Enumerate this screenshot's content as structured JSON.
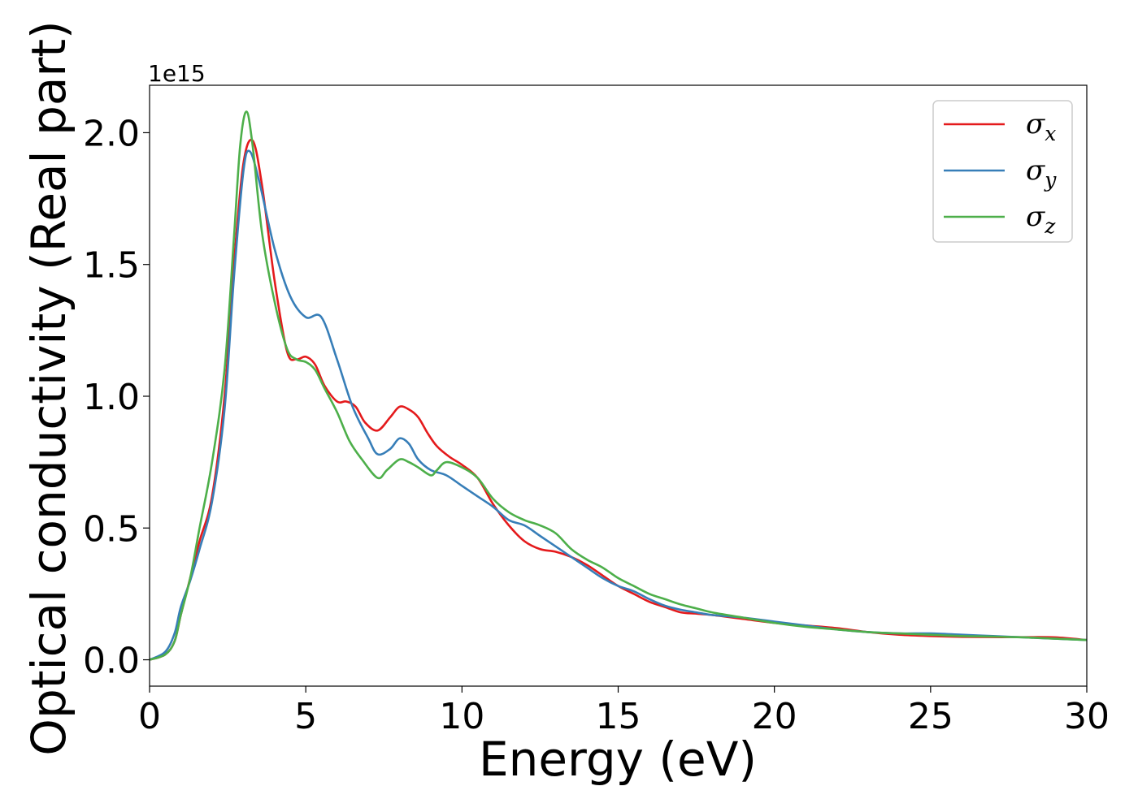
{
  "chart_data": {
    "type": "line",
    "xlabel": "Energy (eV)",
    "ylabel": "Optical conductivity (Real part)",
    "y_offset_text": "1e15",
    "xlim": [
      0,
      30
    ],
    "ylim": [
      -0.1,
      2.18
    ],
    "xticks": [
      0,
      5,
      10,
      15,
      20,
      25,
      30
    ],
    "xtick_labels": [
      "0",
      "5",
      "10",
      "15",
      "20",
      "25",
      "30"
    ],
    "yticks": [
      0.0,
      0.5,
      1.0,
      1.5,
      2.0
    ],
    "ytick_labels": [
      "0.0",
      "0.5",
      "1.0",
      "1.5",
      "2.0"
    ],
    "grid": false,
    "legend_position": "top-right",
    "series": [
      {
        "name": "σx",
        "legend_base": "σ",
        "legend_sub": "x",
        "color": "#e41a1c",
        "x": [
          0,
          0.5,
          0.8,
          1.0,
          1.3,
          1.6,
          2.0,
          2.4,
          2.7,
          3.0,
          3.3,
          3.6,
          4.0,
          4.4,
          4.7,
          5.0,
          5.3,
          5.6,
          6.0,
          6.3,
          6.6,
          6.9,
          7.3,
          7.7,
          8.0,
          8.3,
          8.6,
          8.9,
          9.2,
          9.6,
          10.0,
          10.5,
          11.0,
          11.5,
          12.0,
          12.5,
          13.0,
          13.5,
          14.0,
          14.5,
          15.0,
          15.5,
          16.0,
          16.5,
          17.0,
          17.5,
          18.0,
          19.0,
          20.0,
          21.0,
          22.0,
          23.0,
          24.0,
          25.0,
          26.0,
          27.0,
          28.0,
          29.0,
          30.0
        ],
        "values": [
          0.0,
          0.02,
          0.07,
          0.17,
          0.31,
          0.45,
          0.62,
          1.0,
          1.5,
          1.88,
          1.97,
          1.8,
          1.44,
          1.17,
          1.14,
          1.15,
          1.12,
          1.04,
          0.98,
          0.98,
          0.96,
          0.9,
          0.87,
          0.92,
          0.96,
          0.95,
          0.92,
          0.86,
          0.81,
          0.77,
          0.74,
          0.69,
          0.59,
          0.51,
          0.45,
          0.42,
          0.41,
          0.39,
          0.36,
          0.32,
          0.28,
          0.25,
          0.22,
          0.2,
          0.18,
          0.175,
          0.17,
          0.155,
          0.14,
          0.13,
          0.12,
          0.105,
          0.095,
          0.09,
          0.087,
          0.086,
          0.086,
          0.085,
          0.075
        ]
      },
      {
        "name": "σy",
        "legend_base": "σ",
        "legend_sub": "y",
        "color": "#377eb8",
        "x": [
          0,
          0.5,
          0.8,
          1.0,
          1.3,
          1.6,
          2.0,
          2.4,
          2.7,
          3.0,
          3.2,
          3.5,
          4.0,
          4.5,
          5.0,
          5.5,
          6.0,
          6.5,
          7.0,
          7.3,
          7.7,
          8.0,
          8.3,
          8.6,
          9.0,
          9.5,
          10.0,
          10.5,
          11.0,
          11.5,
          12.0,
          12.5,
          13.0,
          13.5,
          14.0,
          14.5,
          15.0,
          15.5,
          16.0,
          16.5,
          17.0,
          17.5,
          18.0,
          19.0,
          20.0,
          21.0,
          22.0,
          23.0,
          24.0,
          25.0,
          26.0,
          27.0,
          28.0,
          29.0,
          30.0
        ],
        "values": [
          0.0,
          0.03,
          0.1,
          0.2,
          0.3,
          0.42,
          0.6,
          0.95,
          1.45,
          1.85,
          1.93,
          1.82,
          1.56,
          1.38,
          1.3,
          1.3,
          1.14,
          0.96,
          0.84,
          0.78,
          0.8,
          0.84,
          0.82,
          0.76,
          0.72,
          0.7,
          0.66,
          0.62,
          0.58,
          0.53,
          0.51,
          0.47,
          0.43,
          0.39,
          0.35,
          0.31,
          0.28,
          0.26,
          0.23,
          0.205,
          0.19,
          0.18,
          0.17,
          0.16,
          0.145,
          0.13,
          0.115,
          0.105,
          0.1,
          0.1,
          0.095,
          0.09,
          0.085,
          0.08,
          0.075
        ]
      },
      {
        "name": "σz",
        "legend_base": "σ",
        "legend_sub": "z",
        "color": "#4daf4a",
        "x": [
          0,
          0.5,
          0.8,
          1.0,
          1.3,
          1.6,
          2.0,
          2.4,
          2.7,
          2.9,
          3.1,
          3.3,
          3.6,
          4.0,
          4.4,
          4.7,
          5.0,
          5.3,
          5.6,
          6.0,
          6.4,
          6.8,
          7.3,
          7.6,
          8.0,
          8.3,
          8.6,
          9.0,
          9.2,
          9.5,
          10.0,
          10.5,
          11.0,
          11.5,
          12.0,
          12.5,
          13.0,
          13.5,
          14.0,
          14.5,
          15.0,
          15.5,
          16.0,
          16.5,
          17.0,
          17.5,
          18.0,
          19.0,
          20.0,
          21.0,
          22.0,
          23.0,
          24.0,
          25.0,
          26.0,
          27.0,
          28.0,
          29.0,
          30.0
        ],
        "values": [
          0.0,
          0.02,
          0.07,
          0.17,
          0.31,
          0.5,
          0.75,
          1.1,
          1.6,
          1.95,
          2.08,
          1.95,
          1.62,
          1.36,
          1.18,
          1.14,
          1.13,
          1.1,
          1.03,
          0.94,
          0.83,
          0.76,
          0.69,
          0.72,
          0.76,
          0.75,
          0.73,
          0.7,
          0.72,
          0.75,
          0.73,
          0.69,
          0.61,
          0.56,
          0.53,
          0.51,
          0.48,
          0.42,
          0.38,
          0.35,
          0.31,
          0.28,
          0.25,
          0.23,
          0.21,
          0.195,
          0.18,
          0.16,
          0.14,
          0.125,
          0.115,
          0.105,
          0.1,
          0.095,
          0.09,
          0.088,
          0.085,
          0.08,
          0.075
        ]
      }
    ]
  }
}
